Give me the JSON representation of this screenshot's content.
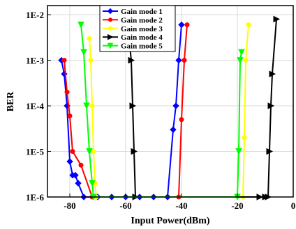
{
  "chart_data": {
    "type": "line",
    "xlabel": "Input Power(dBm)",
    "ylabel": "BER",
    "xlim": [
      -88,
      0
    ],
    "ylim_log10": [
      -6,
      -1.8
    ],
    "y_scale": "log",
    "grid": true,
    "legend_placement": "top-center",
    "x_ticks": [
      -80,
      -60,
      -40,
      -20,
      0
    ],
    "x_tick_labels": [
      "-80",
      "-60",
      "-40",
      "-20",
      "0"
    ],
    "y_ticks": [
      1e-06,
      1e-05,
      0.0001,
      0.001,
      0.01
    ],
    "y_tick_labels": [
      "1E-6",
      "1E-5",
      "1E-4",
      "1E-3",
      "1E-2"
    ],
    "series": [
      {
        "name": "Gain mode 1",
        "color": "#0000ff",
        "marker": "diamond",
        "x": [
          -83,
          -82,
          -81,
          -80,
          -79,
          -78,
          -77,
          -75,
          -70,
          -65,
          -60,
          -55,
          -50,
          -45,
          -43,
          -42,
          -41,
          -40
        ],
        "y": [
          0.001,
          0.0005,
          0.0001,
          6e-06,
          3e-06,
          3e-06,
          2e-06,
          1e-06,
          1e-06,
          1e-06,
          1e-06,
          1e-06,
          1e-06,
          1e-06,
          3e-05,
          0.0001,
          0.001,
          0.006
        ]
      },
      {
        "name": "Gain mode 2",
        "color": "#ff0000",
        "marker": "circle",
        "x": [
          -82,
          -81,
          -80,
          -79,
          -76,
          -72,
          -41,
          -40,
          -39,
          -38
        ],
        "y": [
          0.001,
          0.0002,
          6e-05,
          1e-05,
          5e-06,
          1e-06,
          1e-06,
          5e-05,
          0.001,
          0.006
        ]
      },
      {
        "name": "Gain mode 3",
        "color": "#ffff00",
        "marker": "circle",
        "x": [
          -73,
          -72.5,
          -72,
          -71.5,
          -71,
          -70.5,
          -18,
          -17.5,
          -17,
          -16
        ],
        "y": [
          0.003,
          0.001,
          0.0001,
          1e-05,
          2e-06,
          1e-06,
          1e-06,
          2e-05,
          0.001,
          0.006
        ]
      },
      {
        "name": "Gain mode 4",
        "color": "#000000",
        "marker": "triangle-right",
        "x": [
          -59,
          -58,
          -57.5,
          -57,
          -56.5,
          -12,
          -10,
          -9,
          -8.5,
          -8,
          -7.5,
          -6
        ],
        "y": [
          0.004,
          0.001,
          0.0001,
          1e-05,
          1e-06,
          1e-06,
          1e-06,
          1e-06,
          1e-05,
          0.0001,
          0.0005,
          0.008
        ]
      },
      {
        "name": "Gain mode 5",
        "color": "#00ff00",
        "marker": "triangle-down",
        "x": [
          -76,
          -75,
          -74,
          -73,
          -72,
          -71.5,
          -20,
          -19.5,
          -19,
          -18.5
        ],
        "y": [
          0.006,
          0.0015,
          0.0001,
          1e-05,
          2e-06,
          1e-06,
          1e-06,
          1e-05,
          0.001,
          0.0015
        ]
      }
    ]
  }
}
